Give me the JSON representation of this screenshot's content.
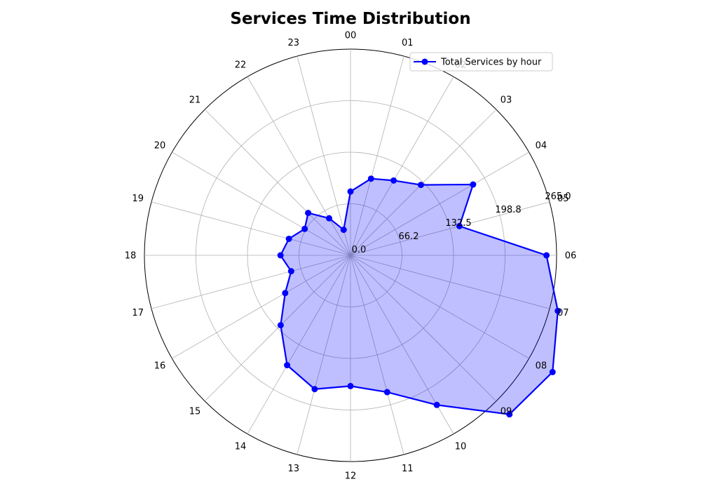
{
  "chart_data": {
    "type": "radar",
    "title": "Services Time Distribution",
    "categories": [
      "00",
      "01",
      "02",
      "03",
      "04",
      "05",
      "06",
      "07",
      "08",
      "09",
      "10",
      "11",
      "12",
      "13",
      "14",
      "15",
      "16",
      "17",
      "18",
      "19",
      "20",
      "21",
      "22",
      "23"
    ],
    "series": [
      {
        "name": "Total Services by hour",
        "values": [
          82,
          102,
          111,
          128,
          182,
          145,
          252,
          276,
          300,
          289,
          222,
          182,
          168,
          178,
          163,
          127,
          97,
          79,
          90,
          82,
          68,
          77,
          55,
          34
        ],
        "line_color": "#0000ff",
        "fill_color": "#0000ff",
        "fill_opacity": 0.25
      }
    ],
    "rlim": [
      0,
      265
    ],
    "radial_ticks": [
      "0.0",
      "66.2",
      "132.5",
      "198.8",
      "265.0"
    ],
    "grid": true,
    "legend_position": "upper-right"
  }
}
